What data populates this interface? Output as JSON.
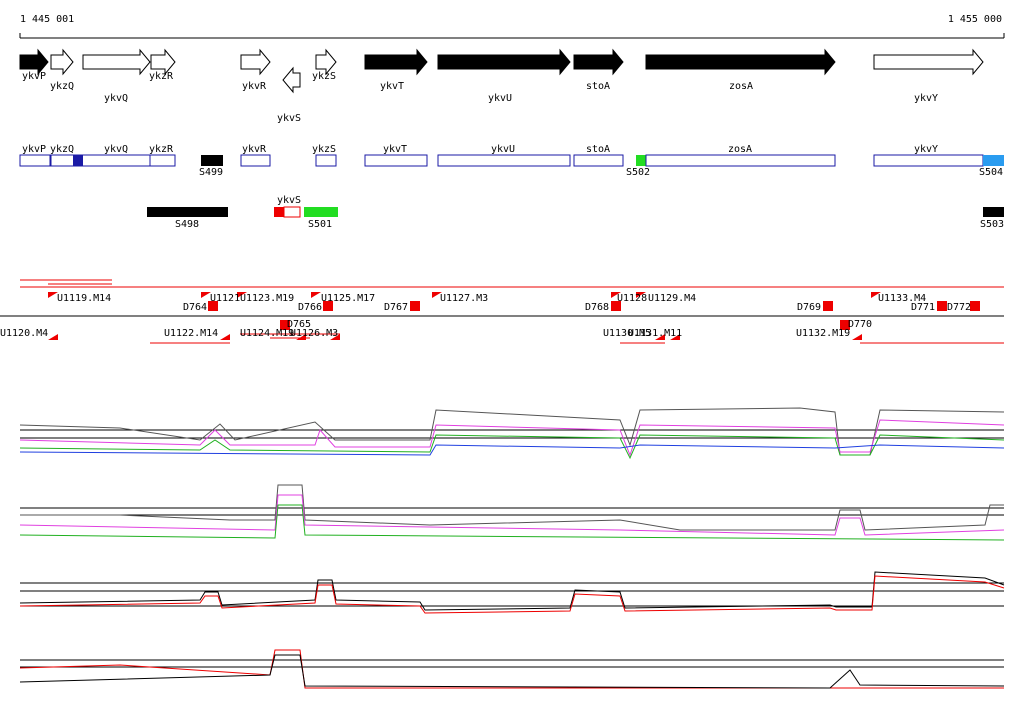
{
  "ruler": {
    "start": "1 445 001",
    "end": "1 455 000"
  },
  "genes": [
    "ykvP",
    "ykzQ",
    "ykvQ",
    "ykzR",
    "ykvR",
    "ykvS",
    "ykzS",
    "ykvT",
    "ykvU",
    "stoA",
    "zosA",
    "ykvY"
  ],
  "boxes": [
    "ykvP",
    "ykzQ",
    "ykvQ",
    "ykzR",
    "ykvR",
    "ykzS",
    "ykvT",
    "ykvU",
    "stoA",
    "zosA",
    "ykvY"
  ],
  "segments": [
    "S499",
    "S502",
    "S504"
  ],
  "features": {
    "gene": "ykvS",
    "labels": [
      "S498",
      "S501",
      "S503"
    ]
  },
  "units_upper": [
    "U1119.M14",
    "D764",
    "U1121",
    "U1123.M19",
    "D766",
    "U1125.M17",
    "D767",
    "U1127.M3",
    "D768",
    "U1128",
    "U1129.M4",
    "D769",
    "U1133.M4",
    "D771",
    "D772"
  ],
  "units_lower": [
    "U1120.M4",
    "U1122.M14",
    "U1124.M19",
    "D765",
    "U1126.M3",
    "U1130.M5",
    "U1131.M11",
    "U1132.M19",
    "D770"
  ]
}
